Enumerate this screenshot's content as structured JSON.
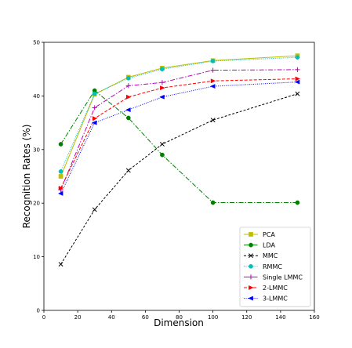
{
  "chart_data": {
    "type": "line",
    "title": "",
    "xlabel": "Dimension",
    "ylabel": "Recognition Rates (%)",
    "xlim": [
      0,
      160
    ],
    "ylim": [
      0,
      50
    ],
    "xticks": [
      0,
      20,
      40,
      60,
      80,
      100,
      120,
      140,
      160
    ],
    "yticks": [
      0,
      10,
      20,
      30,
      40,
      50
    ],
    "grid": false,
    "legend_position": "lower-right",
    "x": [
      10,
      30,
      50,
      70,
      100,
      150
    ],
    "series": [
      {
        "name": "PCA",
        "values": [
          25.0,
          40.3,
          43.5,
          45.2,
          46.6,
          47.5
        ],
        "color": "#bfbf00",
        "dash": "",
        "marker": "square"
      },
      {
        "name": "LDA",
        "values": [
          31.0,
          41.0,
          35.9,
          29.0,
          20.1,
          20.1
        ],
        "color": "#007f00",
        "dash": "6,2,1.5,2",
        "marker": "circle"
      },
      {
        "name": "MMC",
        "values": [
          8.6,
          18.8,
          26.1,
          31.0,
          35.5,
          40.4
        ],
        "color": "#000000",
        "dash": "3,2",
        "marker": "x"
      },
      {
        "name": "RMMC",
        "values": [
          25.9,
          40.4,
          43.3,
          45.0,
          46.5,
          47.2
        ],
        "color": "#00bfbf",
        "dash": "1,1.5",
        "marker": "circle"
      },
      {
        "name": "Single LMMC",
        "values": [
          22.5,
          37.8,
          41.9,
          42.5,
          44.8,
          44.9
        ],
        "color": "#bf00bf",
        "dash": "6,2,1.5,2",
        "marker": "plus"
      },
      {
        "name": "2-LMMC",
        "values": [
          22.8,
          35.8,
          39.8,
          41.5,
          42.8,
          43.2
        ],
        "color": "#ff0000",
        "dash": "4,2",
        "marker": "triangle-right"
      },
      {
        "name": "3-LMMC",
        "values": [
          21.8,
          35.0,
          37.4,
          39.8,
          41.8,
          42.6
        ],
        "color": "#0000ff",
        "dash": "1,1.5",
        "marker": "triangle-left"
      }
    ]
  }
}
